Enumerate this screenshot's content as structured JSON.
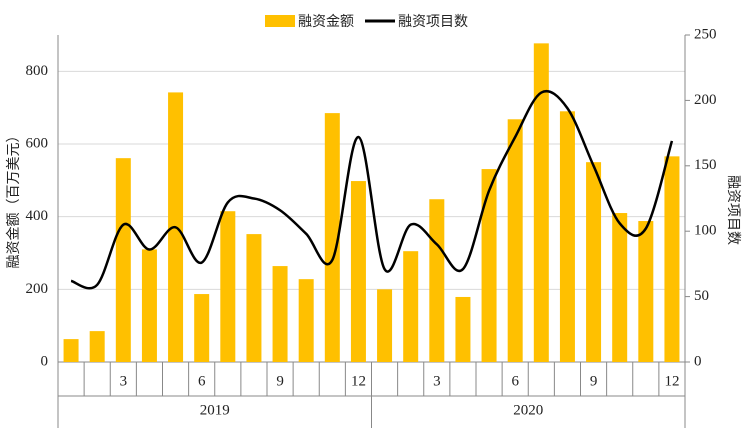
{
  "chart_data": {
    "type": "bar_line",
    "categories": [
      null,
      null,
      "3",
      null,
      null,
      "6",
      null,
      null,
      "9",
      null,
      null,
      "12",
      null,
      null,
      "3",
      null,
      null,
      "6",
      null,
      null,
      "9",
      null,
      null,
      "12"
    ],
    "x_groups": [
      "2019",
      "2020"
    ],
    "series": [
      {
        "name": "融资金额",
        "type": "bar",
        "color": "#FFC000",
        "axis": "y",
        "values": [
          63,
          85,
          561,
          310,
          742,
          187,
          415,
          352,
          264,
          228,
          685,
          498,
          200,
          305,
          448,
          179,
          531,
          668,
          877,
          690,
          550,
          410,
          388,
          566
        ]
      },
      {
        "name": "融资项目数",
        "type": "line",
        "color": "#000000",
        "axis": "y2",
        "values": [
          62,
          59,
          105,
          86,
          103,
          76,
          122,
          125,
          116,
          98,
          78,
          172,
          71,
          105,
          90,
          71,
          131,
          172,
          206,
          194,
          150,
          106,
          102,
          169
        ]
      }
    ],
    "ylabel": "融资金额（百万美元）",
    "y2label": "融资项目数",
    "ylim": [
      0,
      900
    ],
    "yticks": [
      0,
      200,
      400,
      600,
      800
    ],
    "y2lim": [
      0,
      250
    ],
    "y2ticks": [
      0,
      50,
      100,
      150,
      200,
      250
    ],
    "grid": true
  }
}
